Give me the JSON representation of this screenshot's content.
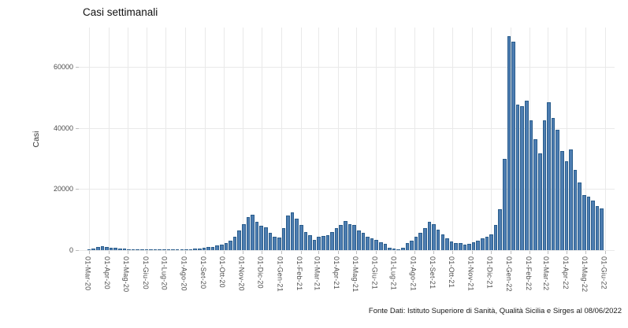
{
  "title": "Casi settimanali",
  "y_axis": {
    "label": "Casi",
    "tick_labels": [
      "0",
      "20000",
      "40000",
      "60000"
    ],
    "tick_values": [
      0,
      20000,
      40000,
      60000
    ]
  },
  "x_axis": {
    "tick_labels": [
      "01-Mar-20",
      "01-Apr-20",
      "01-Mag-20",
      "01-Giu-20",
      "01-Lug-20",
      "01-Ago-20",
      "01-Set-20",
      "01-Ott-20",
      "01-Nov-20",
      "01-Dic-20",
      "01-Gen-21",
      "01-Feb-21",
      "01-Mar-21",
      "01-Apr-21",
      "01-Mag-21",
      "01-Giu-21",
      "01-Lug-21",
      "01-Ago-21",
      "01-Set-21",
      "01-Ott-21",
      "01-Nov-21",
      "01-Dic-21",
      "01-Gen-22",
      "01-Feb-22",
      "01-Mar-22",
      "01-Apr-22",
      "01-Mag-22",
      "01-Giu-22"
    ]
  },
  "footer": "Fonte Dati: Istituto Superiore di Sanità, Qualità Sicilia e Sirges al 08/06/2022",
  "colors": {
    "bar_fill": "#4d7db1",
    "bar_stroke": "#2a5d8c",
    "gridline": "#e9e9e9",
    "axis_text": "#4d4d4d",
    "title_text": "#111111"
  },
  "chart_data": {
    "type": "bar",
    "title": "Casi settimanali",
    "xlabel": "",
    "ylabel": "Casi",
    "ylim": [
      0,
      73000
    ],
    "grid": true,
    "legend": false,
    "x_interval": "weekly",
    "x_start": "01-Mar-20",
    "x_end": "06-Giu-22",
    "x_tick_labels": [
      "01-Mar-20",
      "01-Apr-20",
      "01-Mag-20",
      "01-Giu-20",
      "01-Lug-20",
      "01-Ago-20",
      "01-Set-20",
      "01-Ott-20",
      "01-Nov-20",
      "01-Dic-20",
      "01-Gen-21",
      "01-Feb-21",
      "01-Mar-21",
      "01-Apr-21",
      "01-Mag-21",
      "01-Giu-21",
      "01-Lug-21",
      "01-Ago-21",
      "01-Set-21",
      "01-Ott-21",
      "01-Nov-21",
      "01-Dic-21",
      "01-Gen-22",
      "01-Feb-22",
      "01-Mar-22",
      "01-Apr-22",
      "01-Mag-22",
      "01-Giu-22"
    ],
    "values": [
      150,
      500,
      1050,
      1300,
      1150,
      900,
      700,
      550,
      400,
      300,
      230,
      180,
      130,
      100,
      70,
      50,
      40,
      60,
      100,
      180,
      300,
      350,
      300,
      380,
      480,
      620,
      800,
      950,
      1150,
      1500,
      1900,
      2400,
      3200,
      4300,
      6500,
      8600,
      10900,
      11700,
      9400,
      8050,
      7500,
      5550,
      4500,
      4000,
      7300,
      11400,
      12450,
      10350,
      8200,
      6000,
      5000,
      3450,
      4300,
      4700,
      4900,
      6000,
      7300,
      8150,
      9600,
      8600,
      8300,
      6450,
      5600,
      4300,
      3850,
      3450,
      2600,
      2150,
      850,
      400,
      150,
      850,
      2300,
      3000,
      4300,
      5600,
      7300,
      9200,
      8600,
      6600,
      5150,
      3850,
      2750,
      2300,
      2300,
      1700,
      2150,
      2600,
      3200,
      3800,
      4500,
      5150,
      8150,
      13300,
      30000,
      70100,
      68400,
      47700,
      47300,
      49000,
      42600,
      36500,
      31800,
      42600,
      48600,
      43400,
      39500,
      32600,
      29200,
      33100,
      26200,
      22300,
      18000,
      17600,
      16300,
      14500,
      13700
    ]
  }
}
